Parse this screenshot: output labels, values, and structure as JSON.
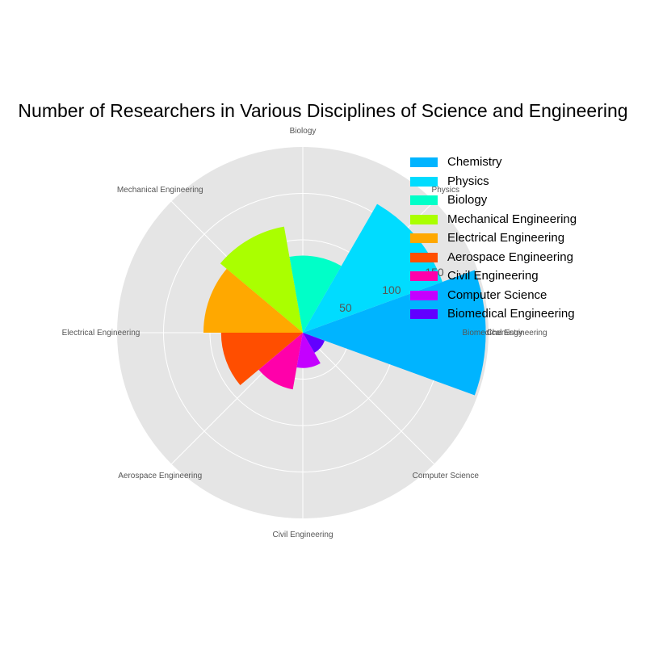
{
  "chart_data": {
    "type": "polar_bar",
    "title": "Number of Researchers in Various Disciplines of Science and Engineering",
    "categories": [
      "Chemistry",
      "Physics",
      "Biology",
      "Mechanical Engineering",
      "Electrical Engineering",
      "Aerospace Engineering",
      "Civil Engineering",
      "Computer Science",
      "Biomedical Engineering"
    ],
    "values": [
      197,
      160,
      83,
      116,
      107,
      88,
      62,
      38,
      25
    ],
    "colors": [
      "#00b4ff",
      "#00dcff",
      "#00ffc8",
      "#aaff00",
      "#ffa800",
      "#ff4e00",
      "#ff00aa",
      "#c400ff",
      "#6200ff"
    ],
    "angle_tick_labels": [
      "Chemistry",
      "Physics",
      "Biology",
      "Mechanical Engineering",
      "Electrical Engineering",
      "Aerospace Engineering",
      "Civil Engineering",
      "Computer Science",
      "Biomedical Engineering"
    ],
    "radial_tick_labels": [
      "50",
      "100",
      "150"
    ],
    "radial_ticks": [
      50,
      100,
      150
    ],
    "rlim": [
      0,
      200
    ],
    "grid": true,
    "legend_position": "top-right"
  }
}
